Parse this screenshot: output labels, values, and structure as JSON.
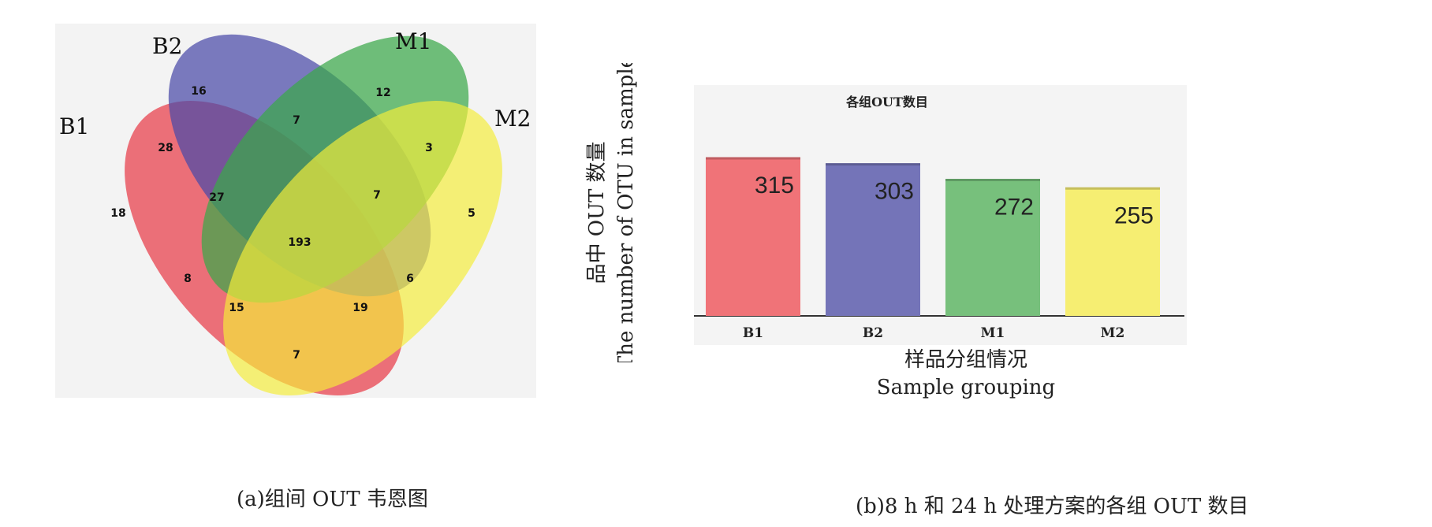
{
  "venn": {
    "caption": "(a)组间 OUT 韦恩图",
    "sets": [
      {
        "name": "B1",
        "color": "#e8434f"
      },
      {
        "name": "B2",
        "color": "#4a4aa8"
      },
      {
        "name": "M1",
        "color": "#3aa84a"
      },
      {
        "name": "M2",
        "color": "#f4ee3a"
      }
    ],
    "regions": {
      "B1": 18,
      "B2": 16,
      "M1": 12,
      "M2": 5,
      "B1_B2": 28,
      "B2_M1": 7,
      "M1_M2": 3,
      "B1_M2": 7,
      "B1_B2_M1": 27,
      "B2_M1_M2": 7,
      "B1_M1_M2": 15,
      "B1_B2_M2": 19,
      "B1_M1": 8,
      "B2_M2": 6,
      "ALL": 193
    }
  },
  "bar": {
    "caption": "(b)8 h 和 24 h 处理方案的各组 OUT 数目"
  },
  "chart_data": {
    "type": "bar",
    "title": "各组OUT数目",
    "categories": [
      "B1",
      "B2",
      "M1",
      "M2"
    ],
    "values": [
      315,
      303,
      272,
      255
    ],
    "value_labels": [
      "315",
      "303",
      "272",
      "255"
    ],
    "colors": [
      "#f07378",
      "#7474b8",
      "#77c07c",
      "#f6ee72"
    ],
    "ylim": [
      0,
      315
    ],
    "yticks": [
      "0.0",
      "157.5",
      "315.0"
    ],
    "ylabel_cn": "品中 OUT 数量",
    "ylabel_en": "The number of OTU in sample",
    "xlabel_cn": "样品分组情况",
    "xlabel_en": "Sample grouping"
  }
}
